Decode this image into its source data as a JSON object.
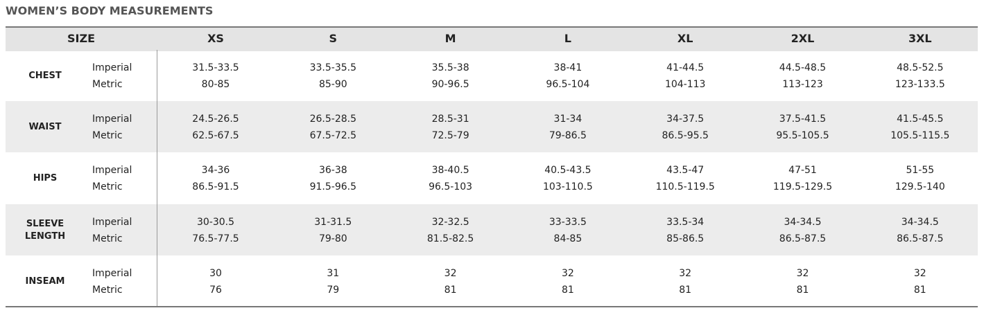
{
  "header": {
    "title": "WOMEN’S BODY MEASUREMENTS"
  },
  "table": {
    "columns": [
      "SIZE",
      "XS",
      "S",
      "M",
      "L",
      "XL",
      "2XL",
      "3XL"
    ],
    "rows": [
      {
        "label": "CHEST",
        "units": [
          "Imperial",
          "Metric"
        ],
        "cells": [
          [
            "31.5-33.5",
            "80-85"
          ],
          [
            "33.5-35.5",
            "85-90"
          ],
          [
            "35.5-38",
            "90-96.5"
          ],
          [
            "38-41",
            "96.5-104"
          ],
          [
            "41-44.5",
            "104-113"
          ],
          [
            "44.5-48.5",
            "113-123"
          ],
          [
            "48.5-52.5",
            "123-133.5"
          ]
        ]
      },
      {
        "label": "WAIST",
        "units": [
          "Imperial",
          "Metric"
        ],
        "cells": [
          [
            "24.5-26.5",
            "62.5-67.5"
          ],
          [
            "26.5-28.5",
            "67.5-72.5"
          ],
          [
            "28.5-31",
            "72.5-79"
          ],
          [
            "31-34",
            "79-86.5"
          ],
          [
            "34-37.5",
            "86.5-95.5"
          ],
          [
            "37.5-41.5",
            "95.5-105.5"
          ],
          [
            "41.5-45.5",
            "105.5-115.5"
          ]
        ]
      },
      {
        "label": "HIPS",
        "units": [
          "Imperial",
          "Metric"
        ],
        "cells": [
          [
            "34-36",
            "86.5-91.5"
          ],
          [
            "36-38",
            "91.5-96.5"
          ],
          [
            "38-40.5",
            "96.5-103"
          ],
          [
            "40.5-43.5",
            "103-110.5"
          ],
          [
            "43.5-47",
            "110.5-119.5"
          ],
          [
            "47-51",
            "119.5-129.5"
          ],
          [
            "51-55",
            "129.5-140"
          ]
        ]
      },
      {
        "label": "SLEEVE LENGTH",
        "units": [
          "Imperial",
          "Metric"
        ],
        "cells": [
          [
            "30-30.5",
            "76.5-77.5"
          ],
          [
            "31-31.5",
            "79-80"
          ],
          [
            "32-32.5",
            "81.5-82.5"
          ],
          [
            "33-33.5",
            "84-85"
          ],
          [
            "33.5-34",
            "85-86.5"
          ],
          [
            "34-34.5",
            "86.5-87.5"
          ],
          [
            "34-34.5",
            "86.5-87.5"
          ]
        ]
      },
      {
        "label": "INSEAM",
        "units": [
          "Imperial",
          "Metric"
        ],
        "cells": [
          [
            "30",
            "76"
          ],
          [
            "31",
            "79"
          ],
          [
            "32",
            "81"
          ],
          [
            "32",
            "81"
          ],
          [
            "32",
            "81"
          ],
          [
            "32",
            "81"
          ],
          [
            "32",
            "81"
          ]
        ]
      }
    ]
  }
}
